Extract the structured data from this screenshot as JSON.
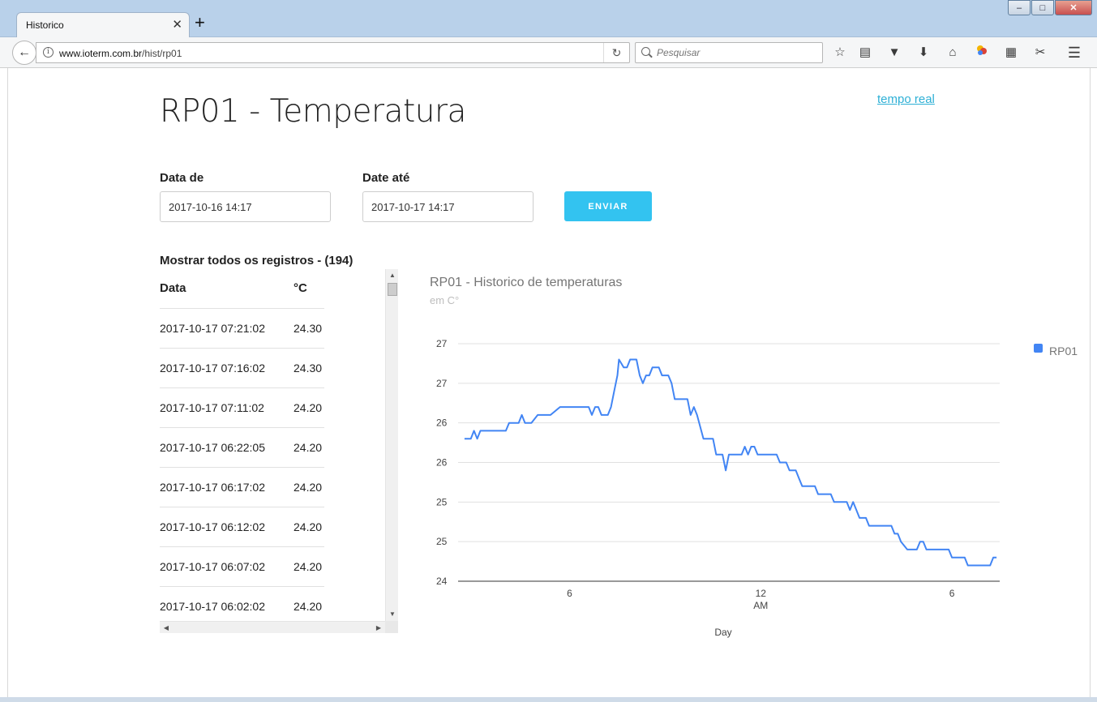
{
  "browser": {
    "tab_title": "Historico",
    "tab_close": "✕",
    "new_tab": "+",
    "url_host": "www.ioterm.com.br",
    "url_path": "/hist/rp01",
    "search_placeholder": "Pesquisar",
    "window_controls": [
      "–",
      "□",
      "✕"
    ]
  },
  "header": {
    "title": "RP01 - Temperatura",
    "realtime_link": "tempo real"
  },
  "form": {
    "from_label": "Data de",
    "from_value": "2017-10-16 14:17",
    "to_label": "Date até",
    "to_value": "2017-10-17 14:17",
    "submit_label": "ENVIAR"
  },
  "records": {
    "title": "Mostrar todos os registros - (194)",
    "columns": [
      "Data",
      "°C"
    ],
    "rows": [
      [
        "2017-10-17 07:21:02",
        "24.30"
      ],
      [
        "2017-10-17 07:16:02",
        "24.30"
      ],
      [
        "2017-10-17 07:11:02",
        "24.20"
      ],
      [
        "2017-10-17 06:22:05",
        "24.20"
      ],
      [
        "2017-10-17 06:17:02",
        "24.20"
      ],
      [
        "2017-10-17 06:12:02",
        "24.20"
      ],
      [
        "2017-10-17 06:07:02",
        "24.20"
      ],
      [
        "2017-10-17 06:02:02",
        "24.20"
      ]
    ]
  },
  "chart_data": {
    "type": "line",
    "title": "RP01 - Historico de temperaturas",
    "subtitle": "em C°",
    "xlabel": "Day",
    "ylabel": "",
    "line_color": "#4285f4",
    "y_ticks": [
      "24",
      "25",
      "25",
      "26",
      "26",
      "27",
      "27"
    ],
    "y_tick_values": [
      24.0,
      24.5,
      25.0,
      25.5,
      26.0,
      26.5,
      27.0
    ],
    "ylim": [
      24.0,
      27.0
    ],
    "x_ticks": [
      {
        "hour": 6,
        "label": "6",
        "sublabel": ""
      },
      {
        "hour": 12,
        "label": "12",
        "sublabel": "AM"
      },
      {
        "hour": 30,
        "label": "6",
        "sublabel": ""
      }
    ],
    "xlim": [
      2.5,
      19.5
    ],
    "legend": {
      "position": "right",
      "entries": [
        "RP01"
      ]
    },
    "series": [
      {
        "name": "RP01",
        "points": [
          [
            2.7,
            25.8
          ],
          [
            2.9,
            25.8
          ],
          [
            3.0,
            25.9
          ],
          [
            3.1,
            25.8
          ],
          [
            3.2,
            25.9
          ],
          [
            3.5,
            25.9
          ],
          [
            4.0,
            25.9
          ],
          [
            4.1,
            26.0
          ],
          [
            4.4,
            26.0
          ],
          [
            4.5,
            26.1
          ],
          [
            4.6,
            26.0
          ],
          [
            4.8,
            26.0
          ],
          [
            5.0,
            26.1
          ],
          [
            5.4,
            26.1
          ],
          [
            5.7,
            26.2
          ],
          [
            6.1,
            26.2
          ],
          [
            6.6,
            26.2
          ],
          [
            6.7,
            26.1
          ],
          [
            6.8,
            26.2
          ],
          [
            6.9,
            26.2
          ],
          [
            7.0,
            26.1
          ],
          [
            7.2,
            26.1
          ],
          [
            7.3,
            26.2
          ],
          [
            7.4,
            26.4
          ],
          [
            7.5,
            26.6
          ],
          [
            7.55,
            26.8
          ],
          [
            7.7,
            26.7
          ],
          [
            7.8,
            26.7
          ],
          [
            7.9,
            26.8
          ],
          [
            8.1,
            26.8
          ],
          [
            8.2,
            26.6
          ],
          [
            8.3,
            26.5
          ],
          [
            8.4,
            26.6
          ],
          [
            8.5,
            26.6
          ],
          [
            8.6,
            26.7
          ],
          [
            8.8,
            26.7
          ],
          [
            8.9,
            26.6
          ],
          [
            9.1,
            26.6
          ],
          [
            9.2,
            26.5
          ],
          [
            9.3,
            26.3
          ],
          [
            9.4,
            26.3
          ],
          [
            9.7,
            26.3
          ],
          [
            9.8,
            26.1
          ],
          [
            9.9,
            26.2
          ],
          [
            10.0,
            26.1
          ],
          [
            10.2,
            25.8
          ],
          [
            10.5,
            25.8
          ],
          [
            10.6,
            25.6
          ],
          [
            10.8,
            25.6
          ],
          [
            10.9,
            25.4
          ],
          [
            11.0,
            25.6
          ],
          [
            11.4,
            25.6
          ],
          [
            11.5,
            25.7
          ],
          [
            11.6,
            25.6
          ],
          [
            11.7,
            25.7
          ],
          [
            11.8,
            25.7
          ],
          [
            11.9,
            25.6
          ],
          [
            12.5,
            25.6
          ],
          [
            12.6,
            25.5
          ],
          [
            12.8,
            25.5
          ],
          [
            12.9,
            25.4
          ],
          [
            13.1,
            25.4
          ],
          [
            13.2,
            25.3
          ],
          [
            13.3,
            25.2
          ],
          [
            13.7,
            25.2
          ],
          [
            13.8,
            25.1
          ],
          [
            14.2,
            25.1
          ],
          [
            14.3,
            25.0
          ],
          [
            14.7,
            25.0
          ],
          [
            14.8,
            24.9
          ],
          [
            14.9,
            25.0
          ],
          [
            15.0,
            24.9
          ],
          [
            15.1,
            24.8
          ],
          [
            15.3,
            24.8
          ],
          [
            15.4,
            24.7
          ],
          [
            16.1,
            24.7
          ],
          [
            16.2,
            24.6
          ],
          [
            16.3,
            24.6
          ],
          [
            16.4,
            24.5
          ],
          [
            16.6,
            24.4
          ],
          [
            16.9,
            24.4
          ],
          [
            17.0,
            24.5
          ],
          [
            17.1,
            24.5
          ],
          [
            17.2,
            24.4
          ],
          [
            17.9,
            24.4
          ],
          [
            18.0,
            24.3
          ],
          [
            18.4,
            24.3
          ],
          [
            18.5,
            24.2
          ],
          [
            19.2,
            24.2
          ],
          [
            19.3,
            24.3
          ],
          [
            19.4,
            24.3
          ]
        ]
      }
    ]
  }
}
